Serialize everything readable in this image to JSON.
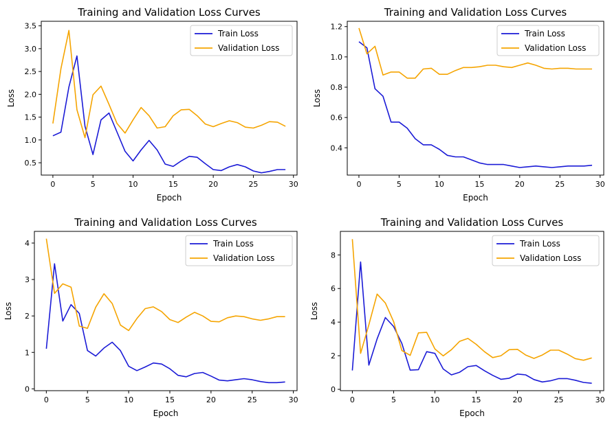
{
  "colors": {
    "train": "#1a1ad6",
    "validation": "#f5a400",
    "axis": "#000000"
  },
  "chart_data": [
    {
      "type": "line",
      "title": "Training and Validation Loss Curves",
      "xlabel": "Epoch",
      "ylabel": "Loss",
      "xlim": [
        -1.45,
        30.45
      ],
      "ylim": [
        0.23,
        3.6
      ],
      "xticks": [
        0,
        5,
        10,
        15,
        20,
        25,
        30
      ],
      "yticks": [
        0.5,
        1.0,
        1.5,
        2.0,
        2.5,
        3.0,
        3.5
      ],
      "ytick_labels": [
        "0.5",
        "1.0",
        "1.5",
        "2.0",
        "2.5",
        "3.0",
        "3.5"
      ],
      "legend": "top-right",
      "x": [
        0,
        1,
        2,
        3,
        4,
        5,
        6,
        7,
        8,
        9,
        10,
        11,
        12,
        13,
        14,
        15,
        16,
        17,
        18,
        19,
        20,
        21,
        22,
        23,
        24,
        25,
        26,
        27,
        28,
        29
      ],
      "series": [
        {
          "name": "Train Loss",
          "color": "#1a1ad6",
          "values": [
            1.09,
            1.17,
            2.16,
            2.84,
            1.3,
            0.68,
            1.44,
            1.59,
            1.17,
            0.75,
            0.54,
            0.78,
            0.99,
            0.78,
            0.47,
            0.42,
            0.54,
            0.64,
            0.62,
            0.48,
            0.35,
            0.33,
            0.41,
            0.46,
            0.41,
            0.32,
            0.28,
            0.31,
            0.35,
            0.35
          ]
        },
        {
          "name": "Validation Loss",
          "color": "#f5a400",
          "values": [
            1.36,
            2.56,
            3.4,
            1.66,
            1.05,
            1.99,
            2.18,
            1.78,
            1.36,
            1.15,
            1.44,
            1.71,
            1.53,
            1.26,
            1.29,
            1.53,
            1.66,
            1.67,
            1.53,
            1.35,
            1.29,
            1.36,
            1.42,
            1.38,
            1.28,
            1.26,
            1.32,
            1.4,
            1.39,
            1.3
          ]
        }
      ]
    },
    {
      "type": "line",
      "title": "Training and Validation Loss Curves",
      "xlabel": "Epoch",
      "ylabel": "Loss",
      "xlim": [
        -1.45,
        30.45
      ],
      "ylim": [
        0.22,
        1.235
      ],
      "xticks": [
        0,
        5,
        10,
        15,
        20,
        25,
        30
      ],
      "yticks": [
        0.4,
        0.6,
        0.8,
        1.0,
        1.2
      ],
      "ytick_labels": [
        "0.4",
        "0.6",
        "0.8",
        "1.0",
        "1.2"
      ],
      "legend": "top-right",
      "x": [
        0,
        1,
        2,
        3,
        4,
        5,
        6,
        7,
        8,
        9,
        10,
        11,
        12,
        13,
        14,
        15,
        16,
        17,
        18,
        19,
        20,
        21,
        22,
        23,
        24,
        25,
        26,
        27,
        28,
        29
      ],
      "series": [
        {
          "name": "Train Loss",
          "color": "#1a1ad6",
          "values": [
            1.1,
            1.06,
            0.79,
            0.74,
            0.57,
            0.57,
            0.53,
            0.46,
            0.42,
            0.42,
            0.39,
            0.35,
            0.34,
            0.34,
            0.32,
            0.3,
            0.29,
            0.29,
            0.29,
            0.28,
            0.27,
            0.275,
            0.28,
            0.275,
            0.27,
            0.275,
            0.28,
            0.28,
            0.28,
            0.285
          ]
        },
        {
          "name": "Validation Loss",
          "color": "#f5a400",
          "values": [
            1.19,
            1.02,
            1.07,
            0.88,
            0.9,
            0.9,
            0.86,
            0.86,
            0.92,
            0.925,
            0.885,
            0.885,
            0.91,
            0.93,
            0.93,
            0.935,
            0.945,
            0.945,
            0.935,
            0.93,
            0.945,
            0.96,
            0.945,
            0.925,
            0.92,
            0.925,
            0.925,
            0.92,
            0.92,
            0.92
          ]
        }
      ]
    },
    {
      "type": "line",
      "title": "Training and Validation Loss Curves",
      "xlabel": "Epoch",
      "ylabel": "Loss",
      "xlim": [
        -1.45,
        30.45
      ],
      "ylim": [
        -0.05,
        4.32
      ],
      "xticks": [
        0,
        5,
        10,
        15,
        20,
        25,
        30
      ],
      "yticks": [
        0,
        1,
        2,
        3,
        4
      ],
      "ytick_labels": [
        "0",
        "1",
        "2",
        "3",
        "4"
      ],
      "legend": "top-right",
      "x": [
        0,
        1,
        2,
        3,
        4,
        5,
        6,
        7,
        8,
        9,
        10,
        11,
        12,
        13,
        14,
        15,
        16,
        17,
        18,
        19,
        20,
        21,
        22,
        23,
        24,
        25,
        26,
        27,
        28,
        29
      ],
      "series": [
        {
          "name": "Train Loss",
          "color": "#1a1ad6",
          "values": [
            1.1,
            3.43,
            1.86,
            2.31,
            2.07,
            1.05,
            0.9,
            1.12,
            1.28,
            1.05,
            0.62,
            0.5,
            0.6,
            0.71,
            0.68,
            0.55,
            0.37,
            0.33,
            0.42,
            0.45,
            0.35,
            0.24,
            0.22,
            0.25,
            0.28,
            0.25,
            0.2,
            0.17,
            0.17,
            0.19
          ]
        },
        {
          "name": "Validation Loss",
          "color": "#f5a400",
          "values": [
            4.12,
            2.62,
            2.88,
            2.79,
            1.72,
            1.66,
            2.24,
            2.61,
            2.34,
            1.75,
            1.6,
            1.93,
            2.2,
            2.25,
            2.12,
            1.9,
            1.82,
            1.97,
            2.1,
            2.0,
            1.85,
            1.84,
            1.95,
            2.0,
            1.98,
            1.92,
            1.88,
            1.92,
            1.98,
            1.98
          ]
        }
      ]
    },
    {
      "type": "line",
      "title": "Training and Validation Loss Curves",
      "xlabel": "Epoch",
      "ylabel": "Loss",
      "xlim": [
        -1.45,
        30.45
      ],
      "ylim": [
        -0.08,
        9.4
      ],
      "xticks": [
        0,
        5,
        10,
        15,
        20,
        25,
        30
      ],
      "yticks": [
        0,
        2,
        4,
        6,
        8
      ],
      "ytick_labels": [
        "0",
        "2",
        "4",
        "6",
        "8"
      ],
      "legend": "top-right",
      "x": [
        0,
        1,
        2,
        3,
        4,
        5,
        6,
        7,
        8,
        9,
        10,
        11,
        12,
        13,
        14,
        15,
        16,
        17,
        18,
        19,
        20,
        21,
        22,
        23,
        24,
        25,
        26,
        27,
        28,
        29
      ],
      "series": [
        {
          "name": "Train Loss",
          "color": "#1a1ad6",
          "values": [
            1.12,
            7.58,
            1.44,
            3.0,
            4.27,
            3.74,
            2.73,
            1.14,
            1.17,
            2.24,
            2.14,
            1.21,
            0.86,
            1.02,
            1.35,
            1.42,
            1.11,
            0.83,
            0.6,
            0.66,
            0.91,
            0.86,
            0.58,
            0.44,
            0.51,
            0.64,
            0.64,
            0.54,
            0.41,
            0.36
          ]
        },
        {
          "name": "Validation Loss",
          "color": "#f5a400",
          "values": [
            8.94,
            2.14,
            3.84,
            5.67,
            5.14,
            4.03,
            2.31,
            2.02,
            3.36,
            3.39,
            2.4,
            1.99,
            2.36,
            2.86,
            3.03,
            2.68,
            2.24,
            1.89,
            2.0,
            2.36,
            2.38,
            2.04,
            1.84,
            2.04,
            2.33,
            2.33,
            2.1,
            1.83,
            1.73,
            1.87
          ]
        }
      ]
    }
  ]
}
